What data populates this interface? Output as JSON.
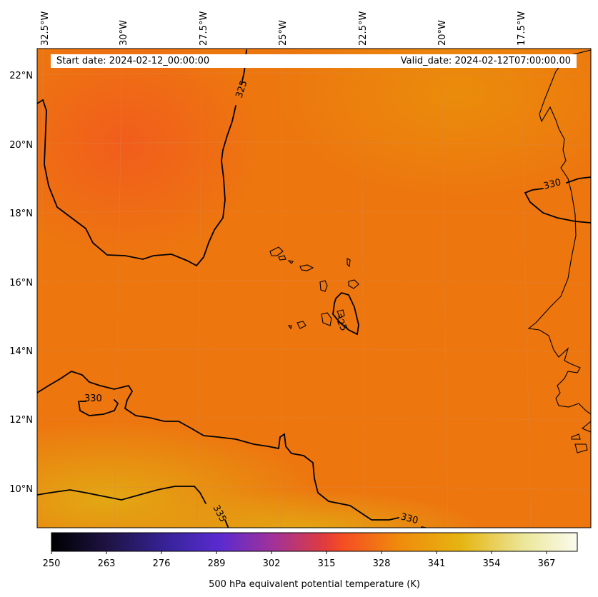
{
  "header": {
    "start_date": "Start date: 2024-02-12_00:00:00",
    "valid_date": "Valid_date: 2024-02-12T07:00:00.00"
  },
  "map": {
    "longitude_ticks": [
      "32.5°W",
      "30°W",
      "27.5°W",
      "25°W",
      "22.5°W",
      "20°W",
      "17.5°W"
    ],
    "latitude_ticks": [
      "22°N",
      "20°N",
      "18°N",
      "16°N",
      "14°N",
      "12°N",
      "10°N"
    ],
    "contour_labels": [
      "325",
      "330",
      "325",
      "330",
      "335",
      "330"
    ]
  },
  "colorbar": {
    "ticks": [
      "250",
      "263",
      "276",
      "289",
      "302",
      "315",
      "328",
      "341",
      "354",
      "367"
    ],
    "label": "500 hPa equivalent potential temperature (K)",
    "colors": [
      "#000000",
      "#2d1a5c",
      "#4b2bc4",
      "#8a34a8",
      "#d63a3a",
      "#f54b25",
      "#f08a0c",
      "#e6b512",
      "#ece79a",
      "#ffffff"
    ]
  }
}
